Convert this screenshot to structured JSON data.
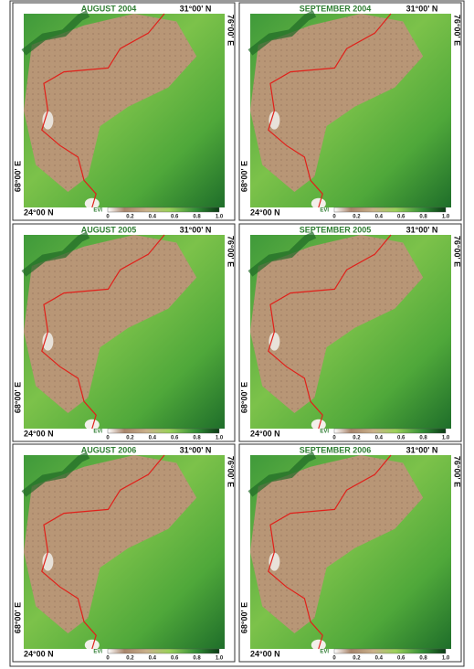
{
  "panels": [
    {
      "title": "AUGUST 2004",
      "lat_top": "31°00' N",
      "lon_right": "76°00' E",
      "lon_left": "68°00' E",
      "lat_bottom": "24°00 N",
      "legend_label": "EVI",
      "legend_ticks": [
        "0",
        "0.2",
        "0.4",
        "0.6",
        "0.8",
        "1.0"
      ]
    },
    {
      "title": "SEPTEMBER 2004",
      "lat_top": "31°00' N",
      "lon_right": "76°00' E",
      "lon_left": "68°00' E",
      "lat_bottom": "24°00 N",
      "legend_label": "EVI",
      "legend_ticks": [
        "0",
        "0.2",
        "0.4",
        "0.6",
        "0.8",
        "1.0"
      ]
    },
    {
      "title": "AUGUST 2005",
      "lat_top": "31°00' N",
      "lon_right": "76°00' E",
      "lon_left": "68°00' E",
      "lat_bottom": "24°00 N",
      "legend_label": "EVI",
      "legend_ticks": [
        "0",
        "0.2",
        "0.4",
        "0.6",
        "0.8",
        "1.0"
      ]
    },
    {
      "title": "SEPTEMBER 2005",
      "lat_top": "31°00' N",
      "lon_right": "76°00' E",
      "lon_left": "68°00' E",
      "lat_bottom": "24°00 N",
      "legend_label": "EVI",
      "legend_ticks": [
        "0",
        "0.2",
        "0.4",
        "0.6",
        "0.8",
        "1.0"
      ]
    },
    {
      "title": "AUGUST 2006",
      "lat_top": "31°00' N",
      "lon_right": "76°00' E",
      "lon_left": "68°00' E",
      "lat_bottom": "24°00 N",
      "legend_label": "EVI",
      "legend_ticks": [
        "0",
        "0.2",
        "0.4",
        "0.6",
        "0.8",
        "1.0"
      ]
    },
    {
      "title": "SEPTEMBER 2006",
      "lat_top": "31°00' N",
      "lon_right": "76°00' E",
      "lon_left": "68°00' E",
      "lat_bottom": "24°00 N",
      "legend_label": "EVI",
      "legend_ticks": [
        "0",
        "0.2",
        "0.4",
        "0.6",
        "0.8",
        "1.0"
      ]
    }
  ]
}
